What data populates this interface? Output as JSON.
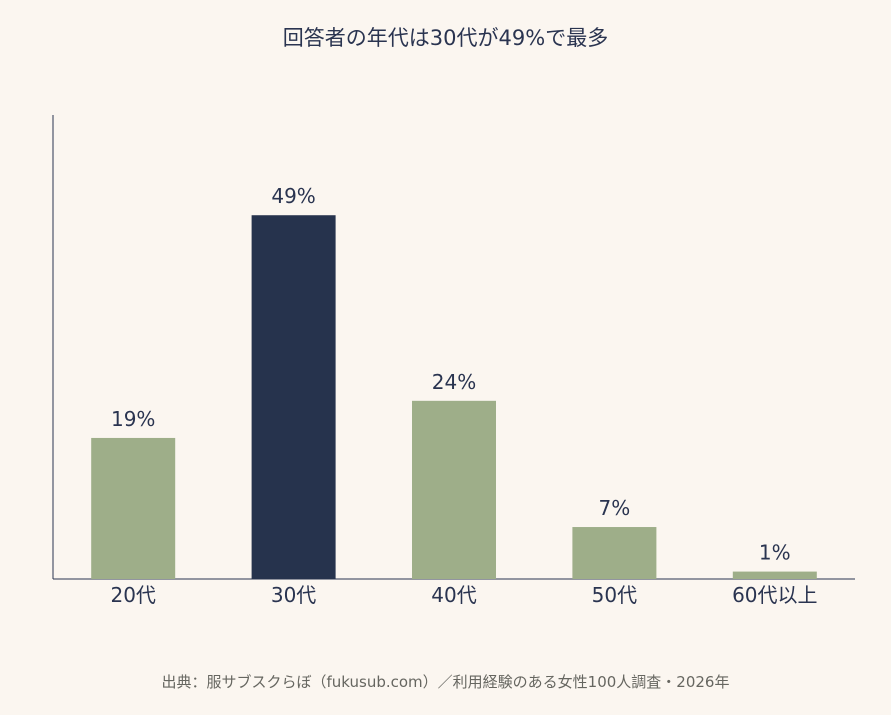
{
  "title": "回答者の年代は30代が49%で最多",
  "source": "出典：服サブスクらぼ（fukusub.com）／利用経験のある女性100人調査・2026年",
  "chart_data": {
    "type": "bar",
    "title": "回答者の年代は30代が49%で最多",
    "xlabel": "",
    "ylabel": "",
    "categories": [
      "20代",
      "30代",
      "40代",
      "50代",
      "60代以上"
    ],
    "values": [
      19,
      49,
      24,
      7,
      1
    ],
    "data_labels": [
      "19%",
      "49%",
      "24%",
      "7%",
      "1%"
    ],
    "highlight_index": 1,
    "ylim": [
      0,
      62.5
    ],
    "grid": false,
    "legend": "none",
    "colors": {
      "default": "#9eae89",
      "highlight": "#26334d",
      "axis": "#2a3450",
      "text": "#2a3450"
    }
  }
}
